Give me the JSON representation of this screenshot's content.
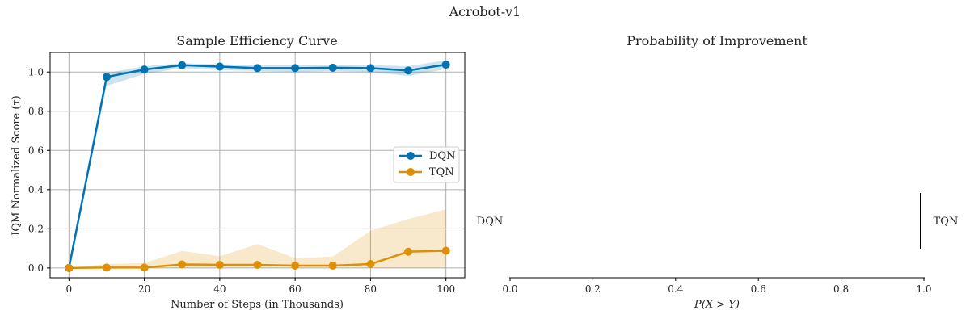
{
  "figure": {
    "title": "Acrobot-v1"
  },
  "chart_data": [
    {
      "type": "line",
      "title": "Sample Efficiency Curve",
      "xlabel": "Number of Steps (in Thousands)",
      "ylabel": "IQM Normalized Score (τ)",
      "xlim": [
        -5,
        105
      ],
      "ylim": [
        -0.05,
        1.1
      ],
      "xticks": [
        0,
        20,
        40,
        60,
        80,
        100
      ],
      "yticks": [
        0.0,
        0.2,
        0.4,
        0.6,
        0.8,
        1.0
      ],
      "grid": true,
      "legend_position": "center-right",
      "x": [
        0,
        10,
        20,
        30,
        40,
        50,
        60,
        70,
        80,
        90,
        100
      ],
      "series": [
        {
          "name": "DQN",
          "color": "#0173b2",
          "values": [
            0.0,
            0.975,
            1.013,
            1.035,
            1.028,
            1.02,
            1.02,
            1.022,
            1.02,
            1.008,
            1.038
          ],
          "ci_low": [
            0.0,
            0.93,
            0.99,
            1.02,
            1.01,
            1.005,
            1.0,
            1.005,
            1.0,
            0.98,
            1.015
          ],
          "ci_high": [
            0.0,
            0.995,
            1.03,
            1.045,
            1.04,
            1.035,
            1.035,
            1.035,
            1.035,
            1.03,
            1.06
          ]
        },
        {
          "name": "TQN",
          "color": "#de8f05",
          "values": [
            0.0,
            0.002,
            0.002,
            0.018,
            0.016,
            0.016,
            0.012,
            0.012,
            0.02,
            0.083,
            0.088
          ],
          "ci_low": [
            0.0,
            0.0,
            0.0,
            0.0,
            0.0,
            0.0,
            0.0,
            0.0,
            0.0,
            0.0,
            0.0
          ],
          "ci_high": [
            0.0,
            0.02,
            0.025,
            0.087,
            0.06,
            0.122,
            0.05,
            0.058,
            0.19,
            0.25,
            0.3
          ]
        }
      ]
    },
    {
      "type": "bar",
      "title": "Probability of Improvement",
      "xlabel": "P(X > Y)",
      "xlim": [
        0.0,
        1.0
      ],
      "xticks": [
        0.0,
        0.2,
        0.4,
        0.6,
        0.8,
        1.0
      ],
      "xtick_labels": [
        "0.0",
        "0.2",
        "0.4",
        "0.6",
        "0.8",
        "1.0"
      ],
      "left_label": "DQN",
      "right_label": "TQN",
      "probability": 1.0,
      "ci": [
        1.0,
        1.0
      ]
    }
  ]
}
